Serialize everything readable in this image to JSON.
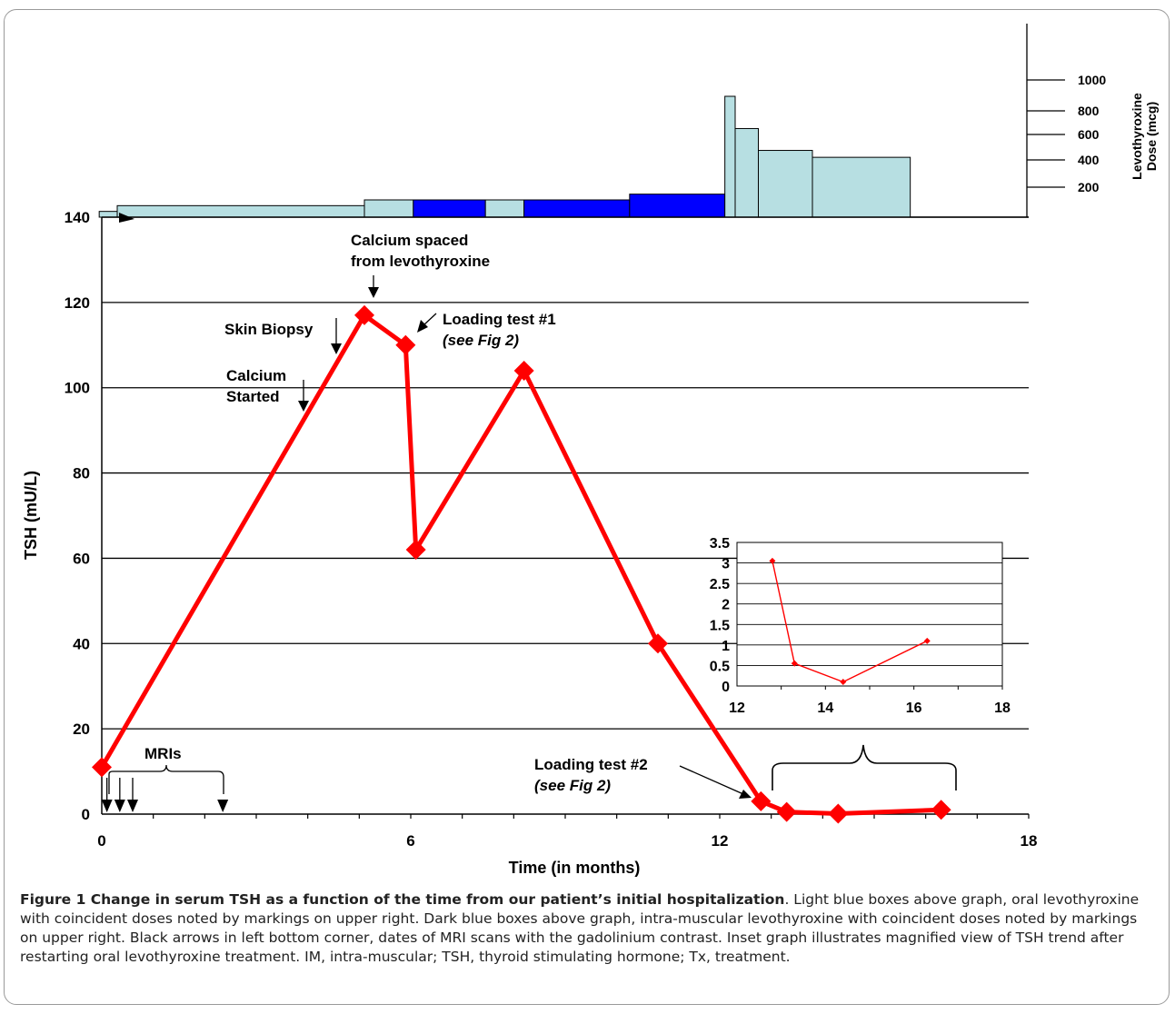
{
  "chart_data": [
    {
      "type": "line",
      "xlabel": "Time (in months)",
      "ylabel": "TSH (mU/L)",
      "xlim": [
        0,
        18
      ],
      "ylim": [
        0,
        140
      ],
      "xticks": [
        0,
        6,
        12,
        18
      ],
      "yticks": [
        0,
        20,
        40,
        60,
        80,
        100,
        120,
        140
      ],
      "grid": "horizontal",
      "series_color": "#ff0000",
      "x": [
        0,
        5.1,
        5.9,
        6.1,
        8.2,
        10.8,
        12.8,
        13.3,
        14.3,
        16.3
      ],
      "values": [
        11,
        117,
        110,
        62,
        104,
        40,
        3,
        0.5,
        0.1,
        1
      ],
      "annotations": [
        {
          "id": "calcium_spaced",
          "lines": [
            "Calcium spaced",
            "from levothyroxine"
          ],
          "x": 5.3
        },
        {
          "id": "skin_biopsy",
          "lines": [
            "Skin Biopsy"
          ],
          "x": 4.6
        },
        {
          "id": "loading1",
          "lines": [
            "Loading test #1",
            "(see Fig 2)"
          ],
          "x": 6.4
        },
        {
          "id": "calcium_started",
          "lines": [
            "Calcium",
            "Started"
          ],
          "x": 3.9
        },
        {
          "id": "loading2",
          "lines": [
            "Loading test #2",
            "(see Fig 2)"
          ],
          "x": 12.7
        },
        {
          "id": "mris",
          "lines": [
            "MRIs"
          ],
          "x": [
            0.1,
            0.35,
            0.6,
            2.35
          ]
        }
      ]
    },
    {
      "type": "bar",
      "description_colors": {
        "oral": "#b7dfe2",
        "im": "#0000ff"
      },
      "y_axis_label": [
        "Levothyroxine",
        "Dose  (mcg)"
      ],
      "yticks": [
        200,
        400,
        600,
        800,
        1000
      ],
      "segments": [
        {
          "x0": -0.05,
          "x1": 0.3,
          "dose": 50,
          "route": "oral"
        },
        {
          "x0": 0.3,
          "x1": 5.1,
          "dose": 100,
          "route": "oral"
        },
        {
          "x0": 5.1,
          "x1": 6.05,
          "dose": 150,
          "route": "oral"
        },
        {
          "x0": 6.05,
          "x1": 7.45,
          "dose": 150,
          "route": "im"
        },
        {
          "x0": 7.45,
          "x1": 8.2,
          "dose": 150,
          "route": "oral"
        },
        {
          "x0": 8.2,
          "x1": 10.25,
          "dose": 150,
          "route": "im"
        },
        {
          "x0": 10.25,
          "x1": 12.1,
          "dose": 200,
          "route": "im"
        },
        {
          "x0": 12.1,
          "x1": 12.3,
          "dose": 1050,
          "route": "oral"
        },
        {
          "x0": 12.3,
          "x1": 12.75,
          "dose": 770,
          "route": "oral"
        },
        {
          "x0": 12.75,
          "x1": 13.8,
          "dose": 580,
          "route": "oral"
        },
        {
          "x0": 13.8,
          "x1": 15.7,
          "dose": 520,
          "route": "oral"
        }
      ]
    },
    {
      "type": "line",
      "role": "inset",
      "xlim": [
        12,
        18
      ],
      "ylim": [
        0,
        3.5
      ],
      "xticks": [
        12,
        14,
        16,
        18
      ],
      "yticks": [
        0,
        0.5,
        1,
        1.5,
        2,
        2.5,
        3,
        3.5
      ],
      "x": [
        12.8,
        13.3,
        14.4,
        16.3
      ],
      "values": [
        3.05,
        0.55,
        0.1,
        1.1
      ]
    }
  ],
  "caption": {
    "title": "Figure 1 Change in serum TSH as a function of the time from our patient’s initial hospitalization",
    "body": ". Light blue boxes above graph, oral levothyroxine with coincident doses noted by markings on upper right. Dark blue boxes above graph, intra-muscular levothyroxine with coincident doses noted by markings on upper right. Black arrows in left bottom corner, dates of MRI scans with the gadolinium contrast. Inset graph illustrates magnified view of TSH trend after restarting oral levothyroxine treatment. IM, intra-muscular; TSH, thyroid stimulating hormone; Tx, treatment."
  }
}
